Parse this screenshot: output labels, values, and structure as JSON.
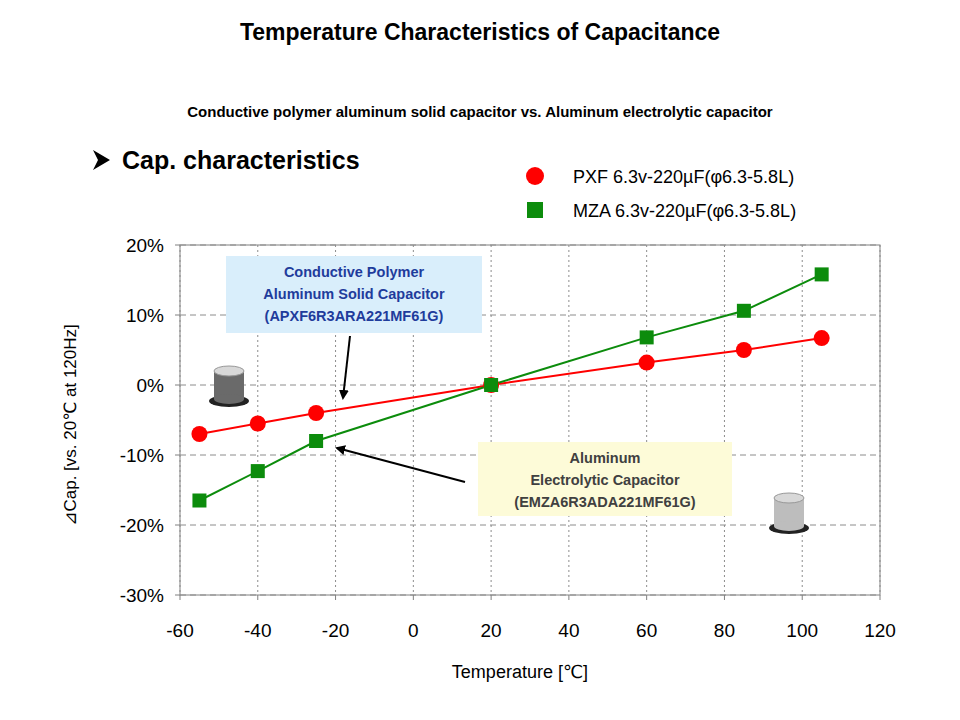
{
  "chart_data": {
    "type": "line",
    "title": "Temperature Characteristics of Capacitance",
    "subtitle": "Conductive polymer aluminum solid capacitor vs. Aluminum electrolytic capacitor",
    "heading": "Cap. characteristics",
    "x_label": "Temperature [℃]",
    "y_label": "⊿Cap. [vs. 20℃ at 120Hz]",
    "x": [
      -55,
      -40,
      -25,
      20,
      60,
      85,
      105
    ],
    "series": [
      {
        "name": "PXF 6.3v-220µF(φ6.3-5.8L)",
        "color": "#ff0000",
        "marker": "circle",
        "values": [
          -7,
          -5.5,
          -4,
          0,
          3.2,
          5,
          6.7
        ]
      },
      {
        "name": "MZA 6.3v-220µF(φ6.3-5.8L)",
        "color": "#0c8c0c",
        "marker": "square",
        "values": [
          -16.5,
          -12.3,
          -8,
          0,
          6.8,
          10.6,
          15.8
        ]
      }
    ],
    "annotations": [
      [
        "Conductive Polymer",
        "Aluminum Solid Capacitor",
        "(APXF6R3ARA221MF61G)"
      ],
      [
        "Aluminum",
        "Electrolytic Capacitor",
        "(EMZA6R3ADA221MF61G)"
      ]
    ],
    "xlim": [
      -60,
      120
    ],
    "xticks": [
      -60,
      -40,
      -20,
      0,
      20,
      40,
      60,
      80,
      100,
      120
    ],
    "ylim": [
      -30,
      20
    ],
    "yticks": [
      {
        "value": -30,
        "label": "-30%"
      },
      {
        "value": -20,
        "label": "-20%"
      },
      {
        "value": -10,
        "label": "-10%"
      },
      {
        "value": 0,
        "label": "0%"
      },
      {
        "value": 10,
        "label": "10%"
      },
      {
        "value": 20,
        "label": "20%"
      }
    ],
    "grid": true,
    "legend": "top-right"
  }
}
